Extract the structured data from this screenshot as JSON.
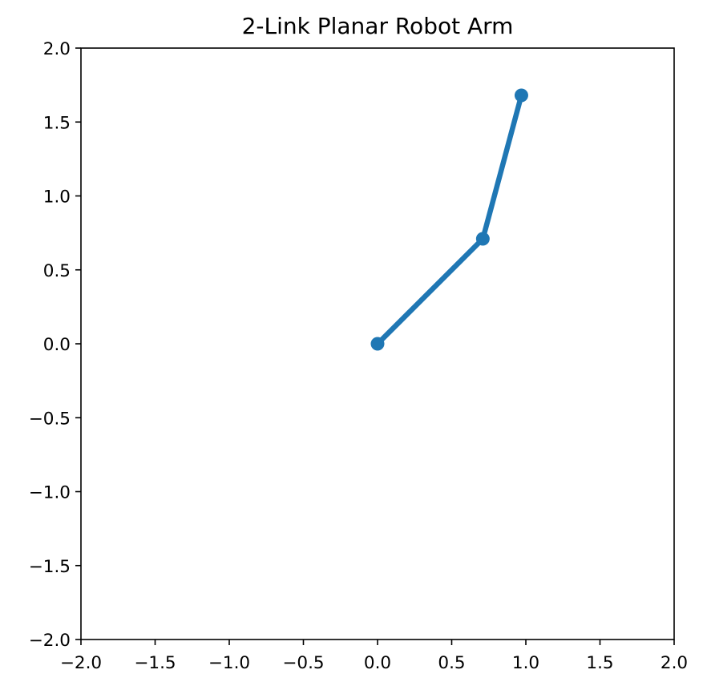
{
  "chart_data": {
    "type": "line",
    "title": "2-Link Planar Robot Arm",
    "xlabel": "",
    "ylabel": "",
    "xlim": [
      -2.0,
      2.0
    ],
    "ylim": [
      -2.0,
      2.0
    ],
    "x_ticks": [
      -2.0,
      -1.5,
      -1.0,
      -0.5,
      0.0,
      0.5,
      1.0,
      1.5,
      2.0
    ],
    "y_ticks": [
      -2.0,
      -1.5,
      -1.0,
      -0.5,
      0.0,
      0.5,
      1.0,
      1.5,
      2.0
    ],
    "x_tick_labels": [
      "−2.0",
      "−1.5",
      "−1.0",
      "−0.5",
      "0.0",
      "0.5",
      "1.0",
      "1.5",
      "2.0"
    ],
    "y_tick_labels": [
      "−2.0",
      "−1.5",
      "−1.0",
      "−0.5",
      "0.0",
      "0.5",
      "1.0",
      "1.5",
      "2.0"
    ],
    "grid": false,
    "legend": null,
    "series": [
      {
        "x": [
          0.0,
          0.71,
          0.97
        ],
        "y": [
          0.0,
          0.71,
          1.68
        ],
        "marker": "circle",
        "color": "#1f77b4"
      }
    ]
  }
}
